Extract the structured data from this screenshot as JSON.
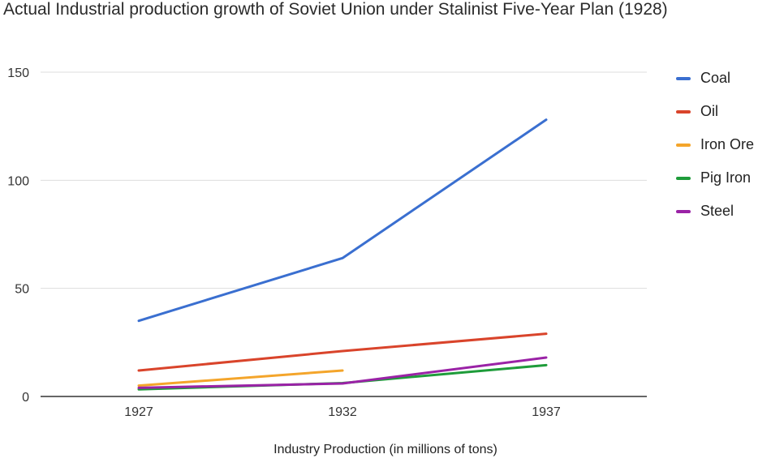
{
  "chart_data": {
    "type": "line",
    "title": "Actual Industrial production growth of Soviet Union under Stalinist Five-Year Plan (1928)",
    "xlabel": "Industry Production (in millions of tons)",
    "ylabel": "",
    "categories": [
      "1927",
      "1932",
      "1937"
    ],
    "xlim": [
      1927,
      1937
    ],
    "ylim": [
      0,
      150
    ],
    "yticks": [
      0,
      50,
      100,
      150
    ],
    "grid": true,
    "legend_position": "right",
    "series": [
      {
        "name": "Coal",
        "color": "#3a6fd0",
        "x": [
          1927,
          1932,
          1937
        ],
        "values": [
          35,
          64,
          128
        ]
      },
      {
        "name": "Oil",
        "color": "#d9442b",
        "x": [
          1927,
          1932,
          1937
        ],
        "values": [
          12,
          21,
          29
        ]
      },
      {
        "name": "Iron Ore",
        "color": "#f4a52b",
        "x": [
          1927,
          1932
        ],
        "values": [
          5,
          12
        ]
      },
      {
        "name": "Pig Iron",
        "color": "#1e9c3a",
        "x": [
          1927,
          1932,
          1937
        ],
        "values": [
          3.3,
          6.2,
          14.5
        ]
      },
      {
        "name": "Steel",
        "color": "#9a22a6",
        "x": [
          1927,
          1932,
          1937
        ],
        "values": [
          4,
          6,
          18
        ]
      }
    ]
  }
}
